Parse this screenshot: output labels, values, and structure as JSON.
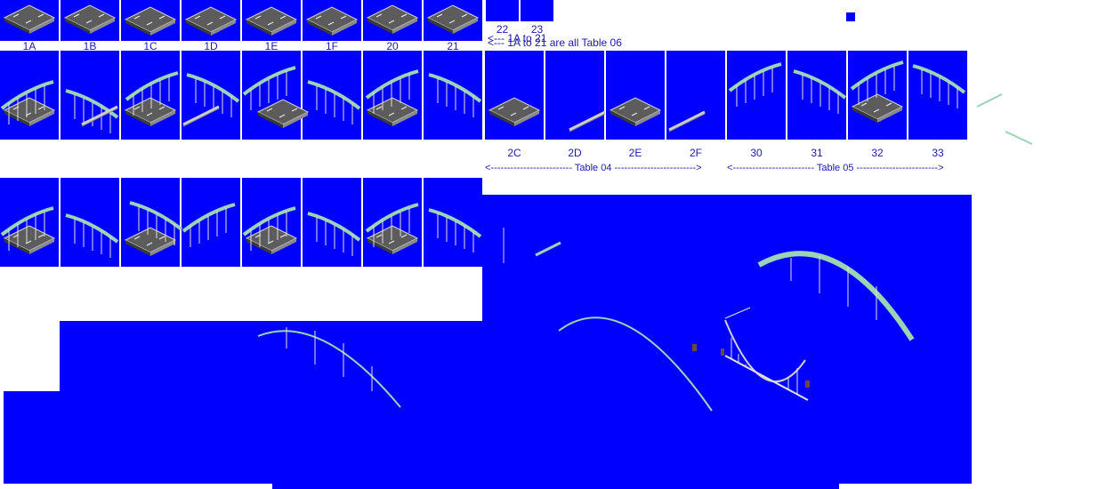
{
  "colors": {
    "background": "#0000ff",
    "label": "#1a1aa8",
    "cable": "#9ad4b4",
    "deck": "#6a6a6a",
    "wire": "#dcdcdc"
  },
  "row1": {
    "labels": [
      "1A",
      "1B",
      "1C",
      "1D",
      "1E",
      "1F",
      "20",
      "21"
    ],
    "small_labels": [
      "22",
      "23"
    ]
  },
  "notes": {
    "overlap_a": "<--- 1A to 21",
    "overlap_b": "<--- 1A to 21 are all Table 06",
    "table04": "<------------------------- Table 04 ------------------------->",
    "table05": "<------------------------- Table 05 ------------------------->"
  },
  "row2": {
    "labels": [
      "2C",
      "2D",
      "2E",
      "2F",
      "30",
      "31",
      "32",
      "33"
    ]
  }
}
